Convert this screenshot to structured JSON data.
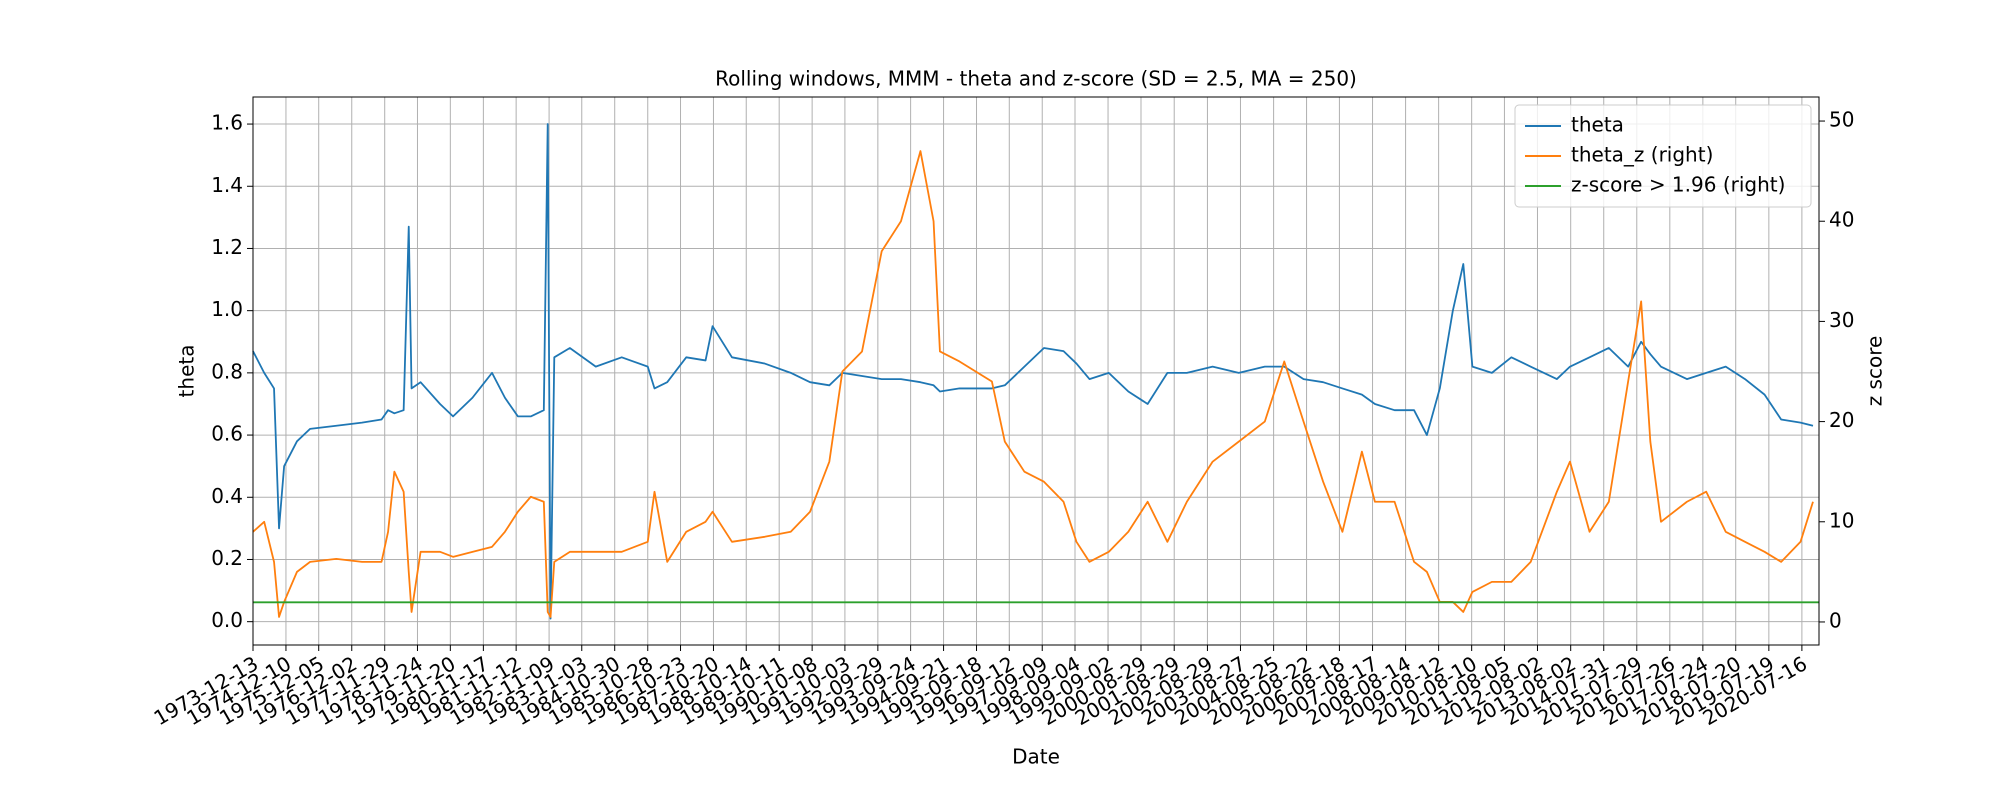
{
  "chart_data": {
    "type": "line",
    "title": "Rolling windows, MMM - theta and z-score (SD = 2.5, MA = 250)",
    "x_label": "Date",
    "y_label": "theta",
    "y2_label": "z score",
    "grid": true,
    "legend": "upper right",
    "xlim": [
      "1973-12-13",
      "2021-01-20"
    ],
    "xticks": [
      "1973-12-13",
      "1974-12-10",
      "1975-12-05",
      "1976-12-02",
      "1977-11-29",
      "1978-11-24",
      "1979-11-20",
      "1980-11-17",
      "1981-11-12",
      "1982-11-09",
      "1983-11-03",
      "1984-10-30",
      "1985-10-28",
      "1986-10-23",
      "1987-10-20",
      "1988-10-14",
      "1989-10-11",
      "1990-10-08",
      "1991-10-03",
      "1992-09-29",
      "1993-09-24",
      "1994-09-21",
      "1995-09-18",
      "1996-09-12",
      "1997-09-09",
      "1998-09-04",
      "1999-09-02",
      "2000-08-29",
      "2001-08-29",
      "2002-08-29",
      "2003-08-27",
      "2004-08-25",
      "2005-08-22",
      "2006-08-18",
      "2007-08-17",
      "2008-08-14",
      "2009-08-12",
      "2010-08-10",
      "2011-08-05",
      "2012-08-02",
      "2013-08-02",
      "2014-07-31",
      "2015-07-29",
      "2016-07-26",
      "2017-07-24",
      "2018-07-20",
      "2019-07-19",
      "2020-07-16"
    ],
    "ylim": [
      -0.075,
      1.687
    ],
    "yticks": [
      {
        "value": 0,
        "label": "0.0"
      },
      0.2,
      0.4,
      0.6,
      0.8,
      {
        "value": 1,
        "label": "1.0"
      },
      1.2,
      1.4,
      1.6
    ],
    "y2lim": [
      -2.3,
      52.4
    ],
    "y2ticks": [
      0,
      10,
      20,
      30,
      40,
      50
    ],
    "x": [
      "1973-12-13",
      "1974-04-15",
      "1974-08-01",
      "1974-09-25",
      "1974-11-20",
      "1975-04-10",
      "1975-09-01",
      "1976-06-15",
      "1977-03-25",
      "1977-10-25",
      "1978-01-05",
      "1978-03-15",
      "1978-06-25",
      "1978-08-20",
      "1978-09-20",
      "1978-12-28",
      "1979-07-30",
      "1979-12-20",
      "1980-07-20",
      "1981-02-20",
      "1981-07-12",
      "1981-12-01",
      "1982-04-22",
      "1982-09-12",
      "1982-10-25",
      "1982-11-25",
      "1983-01-05",
      "1983-06-25",
      "1984-04-05",
      "1985-01-15",
      "1985-10-28",
      "1986-01-10",
      "1986-05-30",
      "1986-12-25",
      "1987-07-25",
      "1987-10-10",
      "1988-05-10",
      "1989-05-05",
      "1990-02-15",
      "1990-09-15",
      "1991-04-15",
      "1991-09-05",
      "1992-04-08",
      "1992-11-10",
      "1993-06-10",
      "1994-01-10",
      "1994-06-03",
      "1994-08-12",
      "1995-03-15",
      "1996-03-05",
      "1996-07-25",
      "1997-02-25",
      "1997-09-28",
      "1998-05-01",
      "1998-09-20",
      "1999-02-10",
      "1999-09-10",
      "2000-04-12",
      "2000-11-10",
      "2001-06-15",
      "2002-01-15",
      "2002-10-25",
      "2003-08-08",
      "2004-05-20",
      "2004-12-20",
      "2005-07-20",
      "2006-02-20",
      "2006-09-20",
      "2007-04-22",
      "2007-09-12",
      "2008-04-15",
      "2008-11-15",
      "2009-04-05",
      "2009-08-25",
      "2010-01-15",
      "2010-05-10",
      "2010-08-18",
      "2011-03-20",
      "2011-10-20",
      "2012-05-20",
      "2013-03-03",
      "2013-07-25",
      "2014-02-25",
      "2014-09-25",
      "2015-04-25",
      "2015-09-15",
      "2015-12-25",
      "2016-04-20",
      "2017-01-30",
      "2017-08-30",
      "2018-04-01",
      "2018-10-30",
      "2019-06-02",
      "2019-12-01",
      "2020-07-01",
      "2020-11-15"
    ],
    "series": [
      {
        "name": "theta",
        "color": "#1f77b4",
        "axis": "y",
        "values": [
          0.87,
          0.8,
          0.75,
          0.3,
          0.5,
          0.58,
          0.62,
          0.63,
          0.64,
          0.65,
          0.68,
          0.67,
          0.68,
          1.27,
          0.75,
          0.77,
          0.7,
          0.66,
          0.72,
          0.8,
          0.72,
          0.66,
          0.66,
          0.68,
          1.6,
          0.01,
          0.85,
          0.88,
          0.82,
          0.85,
          0.82,
          0.75,
          0.77,
          0.85,
          0.84,
          0.95,
          0.85,
          0.83,
          0.8,
          0.77,
          0.76,
          0.8,
          0.79,
          0.78,
          0.78,
          0.77,
          0.76,
          0.74,
          0.75,
          0.75,
          0.76,
          0.82,
          0.88,
          0.87,
          0.83,
          0.78,
          0.8,
          0.74,
          0.7,
          0.8,
          0.8,
          0.82,
          0.8,
          0.82,
          0.82,
          0.78,
          0.77,
          0.75,
          0.73,
          0.7,
          0.68,
          0.68,
          0.6,
          0.75,
          1.0,
          1.15,
          0.82,
          0.8,
          0.85,
          0.82,
          0.78,
          0.82,
          0.85,
          0.88,
          0.82,
          0.9,
          0.86,
          0.82,
          0.78,
          0.8,
          0.82,
          0.78,
          0.73,
          0.65,
          0.64,
          0.63
        ]
      },
      {
        "name": "theta_z (right)",
        "color": "#ff7f0e",
        "axis": "y2",
        "values": [
          9,
          10,
          6,
          0.5,
          2,
          5,
          6,
          6.3,
          6,
          6,
          9,
          15,
          13,
          5,
          1,
          7,
          7,
          6.5,
          7,
          7.5,
          9,
          11,
          12.5,
          12,
          1,
          0.5,
          6,
          7,
          7,
          7,
          8,
          13,
          6,
          9,
          10,
          11,
          8,
          8.5,
          9,
          11,
          16,
          25,
          27,
          37,
          40,
          47,
          40,
          27,
          26,
          24,
          18,
          15,
          14,
          12,
          8,
          6,
          7,
          9,
          12,
          8,
          12,
          16,
          18,
          20,
          26,
          20,
          14,
          9,
          17,
          12,
          12,
          6,
          5,
          2,
          2,
          1,
          3,
          4,
          4,
          6,
          13,
          16,
          9,
          12,
          24,
          32,
          18,
          10,
          12,
          13,
          9,
          8,
          7,
          6,
          8,
          12
        ]
      },
      {
        "name": "z-score > 1.96 (right)",
        "color": "#2ca02c",
        "axis": "y2",
        "x": [
          "1973-12-13",
          "2021-01-20"
        ],
        "values": [
          1.96,
          1.96
        ]
      }
    ]
  }
}
